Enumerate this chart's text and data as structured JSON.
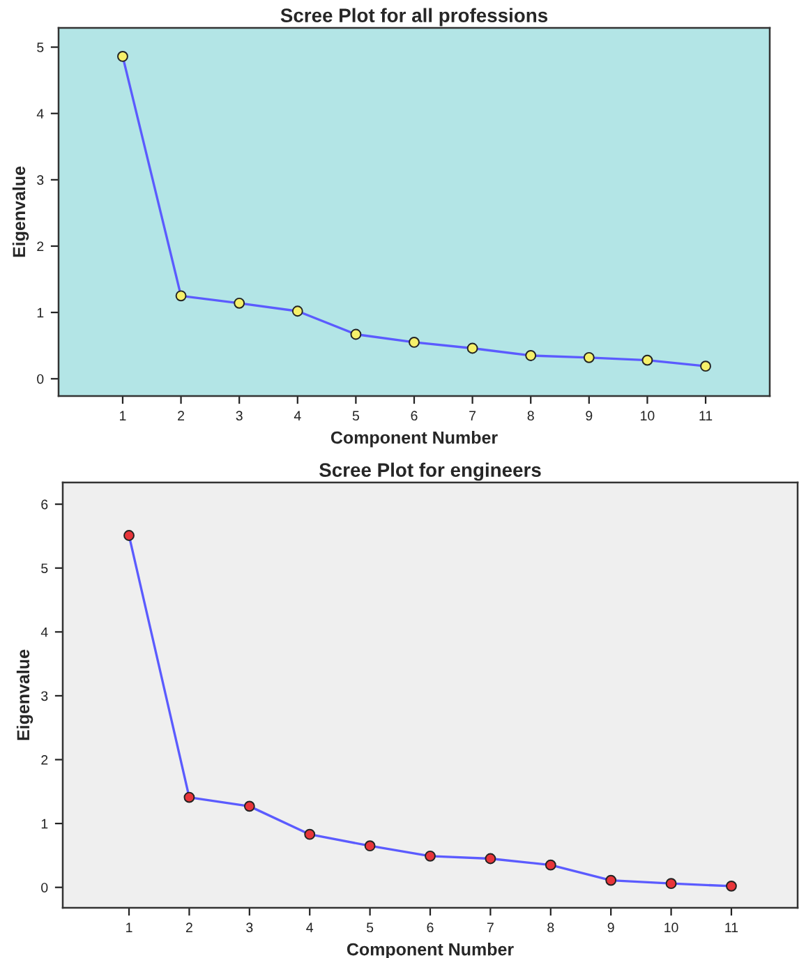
{
  "chart_data": [
    {
      "type": "line",
      "title": "Scree Plot for all professions",
      "xlabel": "Component Number",
      "ylabel": "Eigenvalue",
      "x": [
        1,
        2,
        3,
        4,
        5,
        6,
        7,
        8,
        9,
        10,
        11
      ],
      "xlim": [
        -0.1,
        12.1
      ],
      "xticks": [
        1,
        2,
        3,
        4,
        5,
        6,
        7,
        8,
        9,
        10,
        11
      ],
      "ylim": [
        -0.26,
        5.29
      ],
      "yticks": [
        0,
        1,
        2,
        3,
        4,
        5
      ],
      "marker": "circle",
      "grid": false,
      "series": [
        {
          "color": "#5b5bff",
          "values": [
            4.86,
            1.25,
            1.14,
            1.02,
            0.67,
            0.55,
            0.46,
            0.35,
            0.32,
            0.28,
            0.19
          ]
        }
      ]
    },
    {
      "type": "line",
      "title": "Scree Plot for engineers",
      "xlabel": "Component Number",
      "ylabel": "Eigenvalue",
      "x": [
        1,
        2,
        3,
        4,
        5,
        6,
        7,
        8,
        9,
        10,
        11
      ],
      "xlim": [
        -0.1,
        12.1
      ],
      "xticks": [
        1,
        2,
        3,
        4,
        5,
        6,
        7,
        8,
        9,
        10,
        11
      ],
      "ylim": [
        -0.32,
        6.34
      ],
      "yticks": [
        0,
        1,
        2,
        3,
        4,
        5,
        6
      ],
      "marker": "circle",
      "grid": false,
      "series": [
        {
          "color": "#5b5bff",
          "values": [
            5.51,
            1.41,
            1.27,
            0.83,
            0.65,
            0.49,
            0.45,
            0.35,
            0.11,
            0.06,
            0.02
          ]
        }
      ]
    }
  ]
}
